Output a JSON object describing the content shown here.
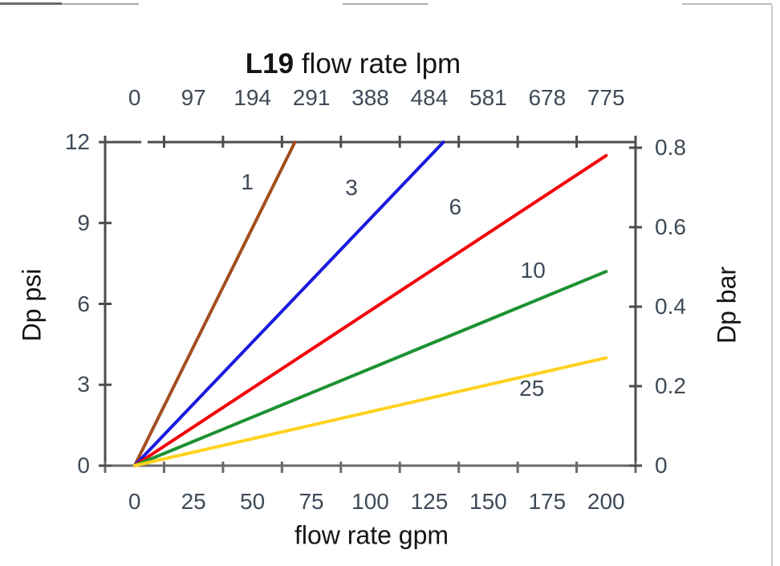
{
  "chart_data": {
    "type": "line",
    "title": {
      "bold": "L19",
      "rest": " flow rate lpm"
    },
    "axes": {
      "top": {
        "tick_labels": [
          "0",
          "97",
          "194",
          "291",
          "388",
          "484",
          "581",
          "678",
          "775"
        ],
        "unit": "lpm"
      },
      "bottom": {
        "label": "flow rate gpm",
        "tick_labels": [
          "0",
          "25",
          "50",
          "75",
          "100",
          "125",
          "150",
          "175",
          "200"
        ],
        "range": [
          0,
          200
        ]
      },
      "left": {
        "label": "Dp psi",
        "tick_labels": [
          "12",
          "9",
          "6",
          "3",
          "0"
        ],
        "range": [
          0,
          12
        ]
      },
      "right": {
        "label": "Dp bar",
        "tick_labels": [
          "0.8",
          "0.6",
          "0.4",
          "0.2",
          "0"
        ],
        "range": [
          0,
          0.8
        ]
      }
    },
    "series": [
      {
        "label": "1",
        "color": "#A34E1F",
        "points": [
          [
            0,
            0
          ],
          [
            68,
            12
          ]
        ],
        "label_pos": [
          47.8,
          10.5
        ]
      },
      {
        "label": "3",
        "color": "#1A1ADF",
        "points": [
          [
            0,
            0
          ],
          [
            131,
            12
          ]
        ],
        "label_pos": [
          92,
          10.3
        ]
      },
      {
        "label": "6",
        "color": "#F3000A",
        "points": [
          [
            0,
            0
          ],
          [
            200,
            11.5
          ]
        ],
        "label_pos": [
          136,
          9.6
        ]
      },
      {
        "label": "10",
        "color": "#1B9130",
        "points": [
          [
            0,
            0
          ],
          [
            200,
            7.2
          ]
        ],
        "label_pos": [
          169,
          7.25
        ]
      },
      {
        "label": "25",
        "color": "#FFD21E",
        "points": [
          [
            0,
            0
          ],
          [
            200,
            4.0
          ]
        ],
        "label_pos": [
          168.5,
          2.85
        ]
      }
    ],
    "grid": false,
    "legend": "labels-on-lines",
    "colors": {
      "frame": "#4d4d4d",
      "bottom_axis": "#6a6a6a",
      "tick_text": "#3f4a57",
      "title_text": "#141414"
    }
  }
}
